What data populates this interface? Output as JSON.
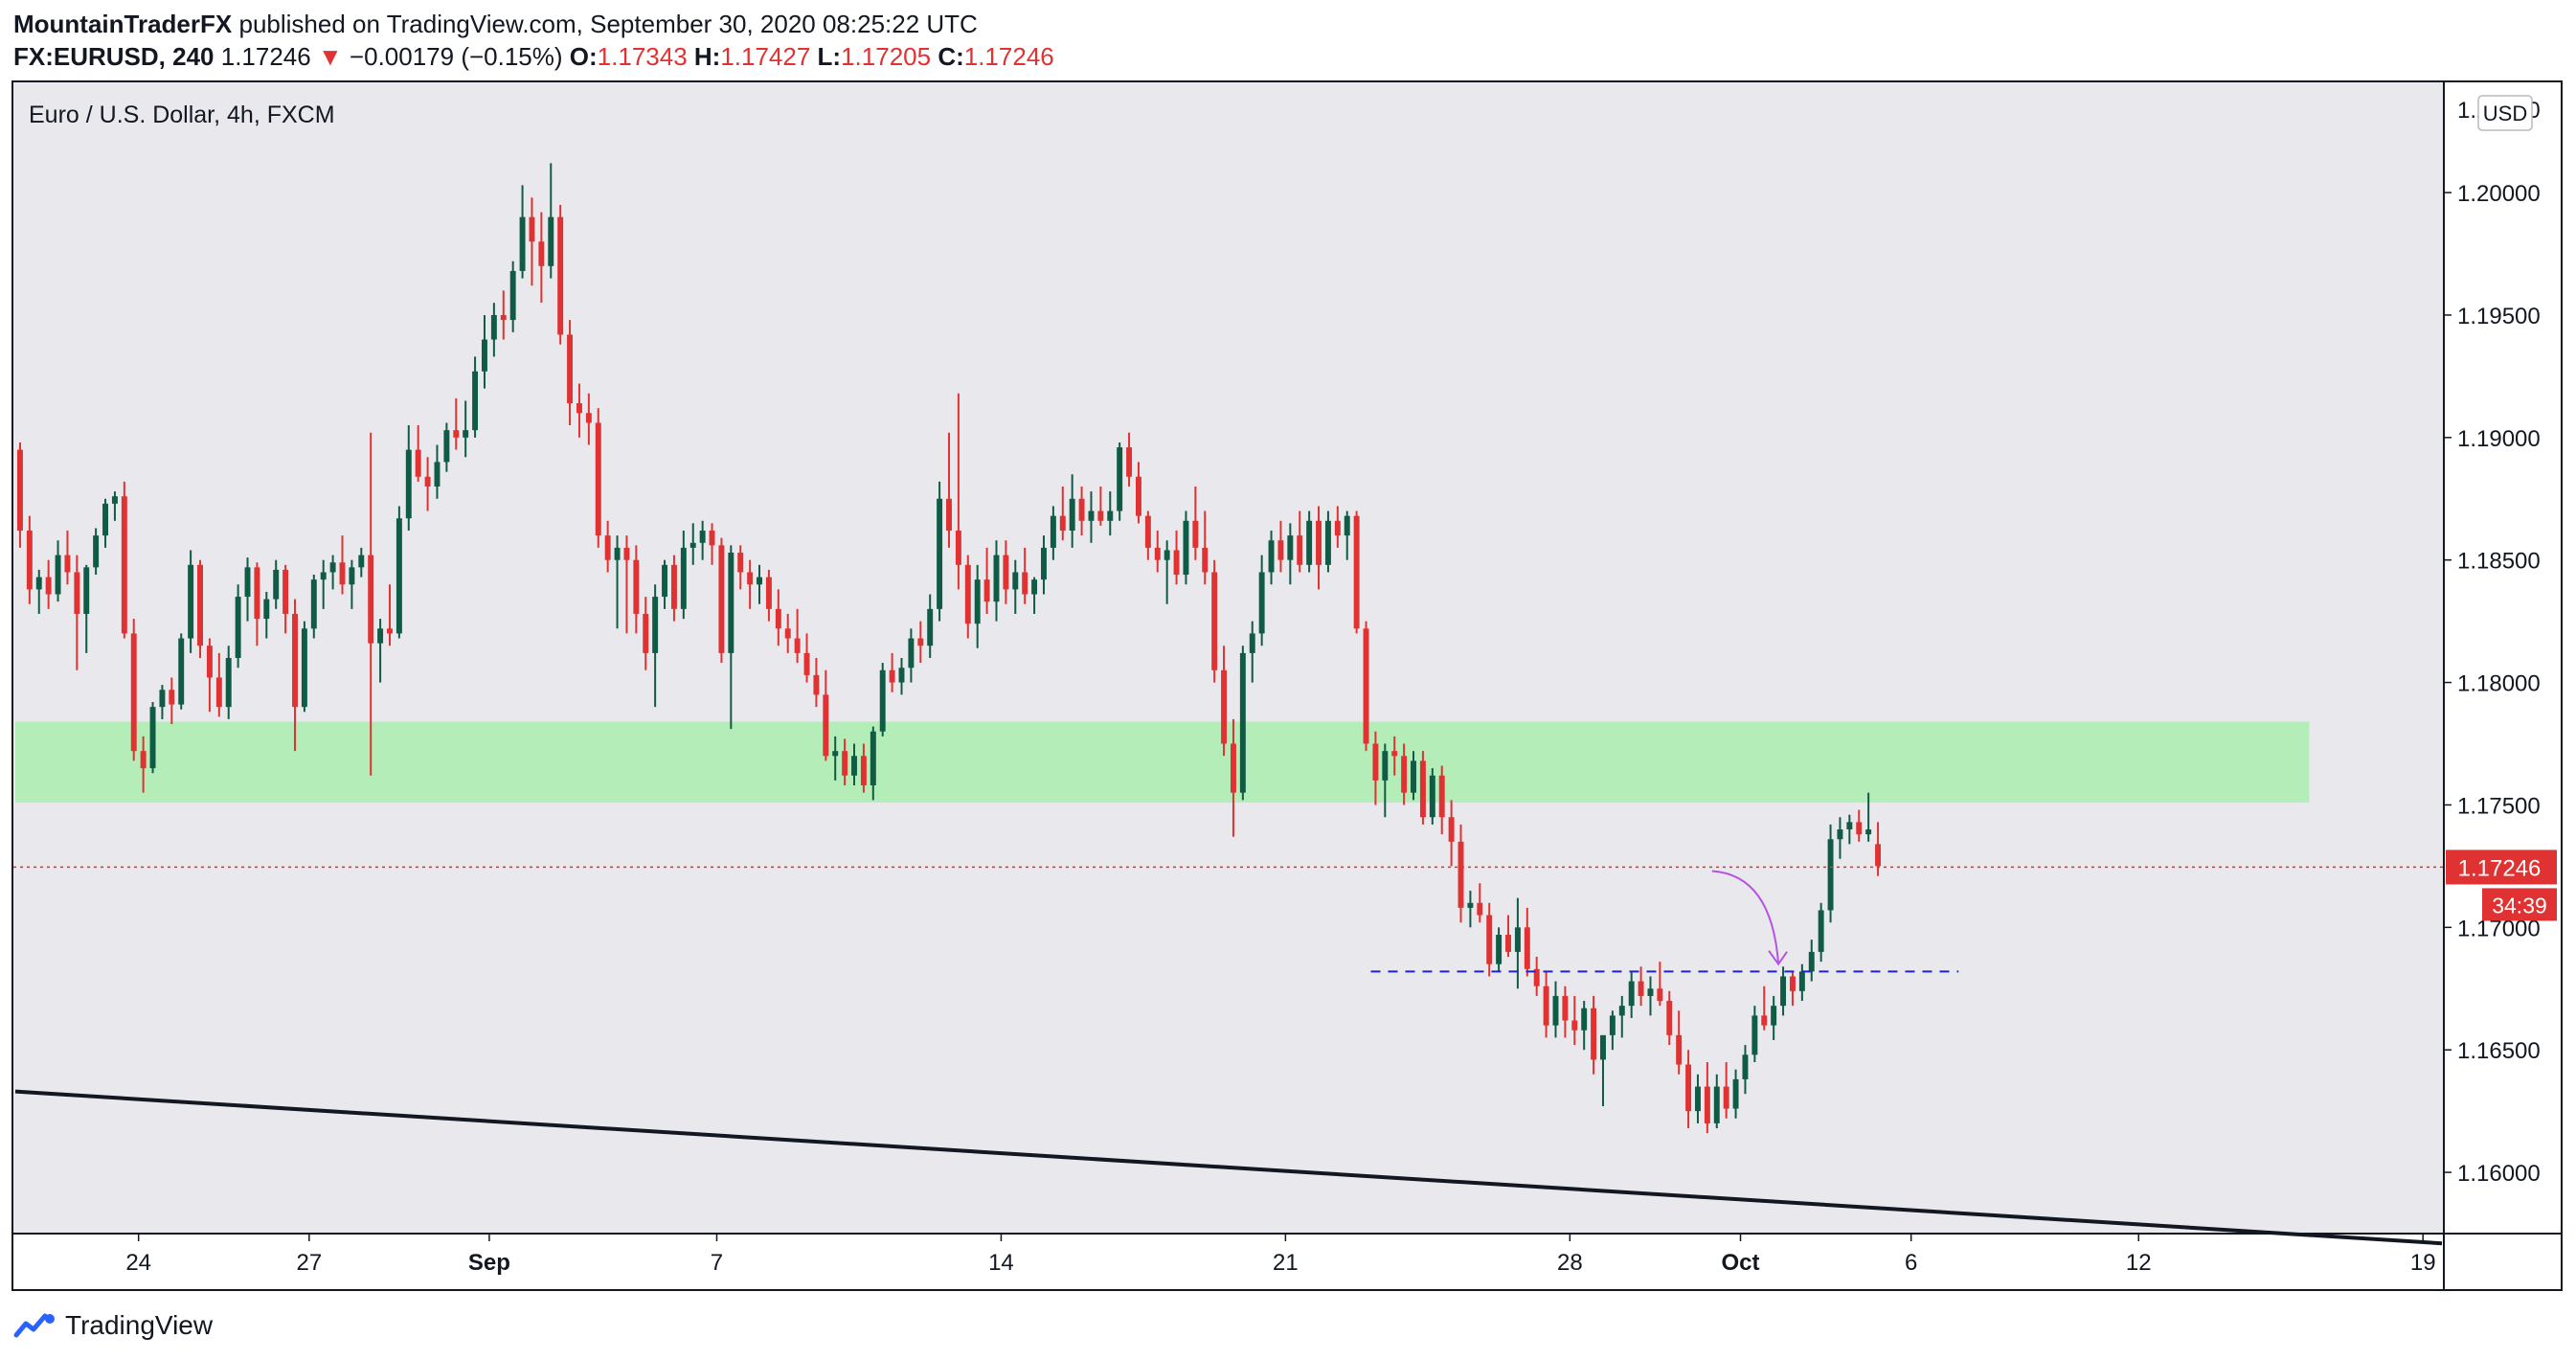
{
  "header": {
    "author": "MountainTraderFX",
    "published_text": "published on TradingView.com, September 30, 2020 08:25:22 UTC",
    "symbol": "FX:EURUSD, 240",
    "price": "1.17246",
    "change_arrow": "▼",
    "change": "−0.00179 (−0.15%)",
    "open_label": "O:",
    "open": "1.17343",
    "high_label": "H:",
    "high": "1.17427",
    "low_label": "L:",
    "low": "1.17205",
    "close_label": "C:",
    "close": "1.17246"
  },
  "footer": {
    "brand": "TradingView"
  },
  "colors": {
    "up": "#26a69a",
    "up_dark": "#0f5b45",
    "down": "#e03232",
    "zone": "#b5edb9",
    "plot_bg": "#e9e9ed",
    "trendline": "#131722",
    "target_line": "#1e22d0",
    "arrow": "#b554e0",
    "price_line": "#e03232"
  },
  "chart_data": {
    "type": "candlestick",
    "title": "Euro / U.S. Dollar, 4h, FXCM",
    "currency_badge": "USD",
    "ylim": [
      1.1575,
      1.2045
    ],
    "y_ticks": [
      {
        "value": 1.16,
        "label": "1.16000"
      },
      {
        "value": 1.165,
        "label": "1.16500"
      },
      {
        "value": 1.17,
        "label": "1.17000"
      },
      {
        "value": 1.175,
        "label": "1.17500"
      },
      {
        "value": 1.18,
        "label": "1.18000"
      },
      {
        "value": 1.185,
        "label": "1.18500"
      },
      {
        "value": 1.19,
        "label": "1.19000"
      },
      {
        "value": 1.195,
        "label": "1.19500"
      },
      {
        "value": 1.2,
        "label": "1.20000"
      }
    ],
    "y_tick_top_partial": "1.20500",
    "x_range": [
      0,
      256
    ],
    "x_ticks": [
      {
        "x": 13,
        "label": "24"
      },
      {
        "x": 31,
        "label": "27"
      },
      {
        "x": 50,
        "label": "Sep"
      },
      {
        "x": 74,
        "label": "7"
      },
      {
        "x": 104,
        "label": "14"
      },
      {
        "x": 134,
        "label": "21"
      },
      {
        "x": 164,
        "label": "28"
      },
      {
        "x": 182,
        "label": "Oct"
      },
      {
        "x": 200,
        "label": "6"
      },
      {
        "x": 224,
        "label": "12"
      },
      {
        "x": 254,
        "label": "19"
      }
    ],
    "last_price": {
      "value": 1.17246,
      "label": "1.17246",
      "countdown": "34:39"
    },
    "zone": {
      "x_start": 0,
      "x_end": 242,
      "low": 1.1751,
      "high": 1.1784
    },
    "trendline": {
      "x1": 0,
      "y1": 1.1633,
      "x2": 256,
      "y2": 1.1571
    },
    "target_line": {
      "x_start": 143,
      "x_end": 205,
      "value": 1.1682
    },
    "projection_arrow": {
      "from_x": 179,
      "from_y": 1.1723,
      "to_x": 186,
      "to_y": 1.1685
    },
    "candles": [
      [
        1.1895,
        1.1898,
        1.1855,
        1.1862
      ],
      [
        1.1862,
        1.1868,
        1.1832,
        1.1838
      ],
      [
        1.1838,
        1.1846,
        1.1828,
        1.1843
      ],
      [
        1.1843,
        1.185,
        1.183,
        1.1836
      ],
      [
        1.1836,
        1.1858,
        1.1833,
        1.1852
      ],
      [
        1.1852,
        1.1862,
        1.184,
        1.1845
      ],
      [
        1.1845,
        1.1852,
        1.1805,
        1.1828
      ],
      [
        1.1828,
        1.1848,
        1.1812,
        1.1847
      ],
      [
        1.1847,
        1.1863,
        1.1844,
        1.186
      ],
      [
        1.186,
        1.1875,
        1.1855,
        1.1873
      ],
      [
        1.1873,
        1.1878,
        1.1866,
        1.1876
      ],
      [
        1.1876,
        1.1882,
        1.1818,
        1.182
      ],
      [
        1.182,
        1.1826,
        1.1768,
        1.1772
      ],
      [
        1.1772,
        1.1778,
        1.1755,
        1.1765
      ],
      [
        1.1765,
        1.1792,
        1.1763,
        1.179
      ],
      [
        1.179,
        1.1799,
        1.1785,
        1.1797
      ],
      [
        1.1797,
        1.1802,
        1.1783,
        1.1791
      ],
      [
        1.1791,
        1.182,
        1.1789,
        1.1818
      ],
      [
        1.1818,
        1.1854,
        1.1812,
        1.1848
      ],
      [
        1.1848,
        1.185,
        1.181,
        1.1815
      ],
      [
        1.1815,
        1.1818,
        1.1788,
        1.1802
      ],
      [
        1.1802,
        1.1812,
        1.1786,
        1.179
      ],
      [
        1.179,
        1.1815,
        1.1785,
        1.181
      ],
      [
        1.181,
        1.184,
        1.1806,
        1.1835
      ],
      [
        1.1835,
        1.1851,
        1.1825,
        1.1847
      ],
      [
        1.1847,
        1.1849,
        1.1815,
        1.1826
      ],
      [
        1.1826,
        1.1837,
        1.1818,
        1.1834
      ],
      [
        1.1834,
        1.185,
        1.183,
        1.1846
      ],
      [
        1.1846,
        1.1848,
        1.182,
        1.1828
      ],
      [
        1.1828,
        1.1834,
        1.1772,
        1.179
      ],
      [
        1.179,
        1.1825,
        1.1788,
        1.1822
      ],
      [
        1.1822,
        1.1844,
        1.1818,
        1.1842
      ],
      [
        1.1842,
        1.185,
        1.183,
        1.1845
      ],
      [
        1.1845,
        1.1852,
        1.1838,
        1.1849
      ],
      [
        1.1849,
        1.186,
        1.1836,
        1.184
      ],
      [
        1.184,
        1.185,
        1.183,
        1.1847
      ],
      [
        1.1847,
        1.1855,
        1.1843,
        1.1852
      ],
      [
        1.1852,
        1.1902,
        1.1762,
        1.1816
      ],
      [
        1.1816,
        1.1826,
        1.18,
        1.1822
      ],
      [
        1.1822,
        1.184,
        1.1815,
        1.182
      ],
      [
        1.182,
        1.1872,
        1.1818,
        1.1867
      ],
      [
        1.1867,
        1.1905,
        1.1862,
        1.1895
      ],
      [
        1.1895,
        1.1905,
        1.1882,
        1.1884
      ],
      [
        1.1884,
        1.1892,
        1.187,
        1.188
      ],
      [
        1.188,
        1.1897,
        1.1875,
        1.189
      ],
      [
        1.189,
        1.1906,
        1.1886,
        1.1903
      ],
      [
        1.1903,
        1.1916,
        1.1895,
        1.19
      ],
      [
        1.19,
        1.1915,
        1.1892,
        1.1903
      ],
      [
        1.1903,
        1.1933,
        1.19,
        1.1927
      ],
      [
        1.1927,
        1.195,
        1.192,
        1.194
      ],
      [
        1.194,
        1.1955,
        1.1933,
        1.195
      ],
      [
        1.195,
        1.196,
        1.194,
        1.1948
      ],
      [
        1.1948,
        1.1972,
        1.1943,
        1.1968
      ],
      [
        1.1968,
        1.2003,
        1.1965,
        1.199
      ],
      [
        1.199,
        1.1998,
        1.1962,
        1.198
      ],
      [
        1.198,
        1.1992,
        1.1955,
        1.197
      ],
      [
        1.197,
        1.2012,
        1.1965,
        1.199
      ],
      [
        1.199,
        1.1995,
        1.1938,
        1.1942
      ],
      [
        1.1942,
        1.1948,
        1.1905,
        1.1914
      ],
      [
        1.1914,
        1.1922,
        1.19,
        1.191
      ],
      [
        1.191,
        1.1918,
        1.1897,
        1.1906
      ],
      [
        1.1906,
        1.1912,
        1.1855,
        1.186
      ],
      [
        1.186,
        1.1866,
        1.1845,
        1.185
      ],
      [
        1.185,
        1.186,
        1.1822,
        1.1855
      ],
      [
        1.1855,
        1.186,
        1.182,
        1.185
      ],
      [
        1.185,
        1.1856,
        1.182,
        1.1828
      ],
      [
        1.1828,
        1.1835,
        1.1805,
        1.1812
      ],
      [
        1.1812,
        1.184,
        1.179,
        1.1835
      ],
      [
        1.1835,
        1.185,
        1.183,
        1.1848
      ],
      [
        1.1848,
        1.1852,
        1.1825,
        1.183
      ],
      [
        1.183,
        1.1862,
        1.1826,
        1.1855
      ],
      [
        1.1855,
        1.1865,
        1.1848,
        1.1857
      ],
      [
        1.1857,
        1.1866,
        1.185,
        1.1862
      ],
      [
        1.1862,
        1.1865,
        1.1848,
        1.1856
      ],
      [
        1.1856,
        1.1859,
        1.1808,
        1.1812
      ],
      [
        1.1812,
        1.1856,
        1.1781,
        1.1853
      ],
      [
        1.1853,
        1.1856,
        1.1838,
        1.1845
      ],
      [
        1.1845,
        1.185,
        1.183,
        1.184
      ],
      [
        1.184,
        1.1848,
        1.1832,
        1.1843
      ],
      [
        1.1843,
        1.1846,
        1.1825,
        1.183
      ],
      [
        1.183,
        1.1838,
        1.1815,
        1.1822
      ],
      [
        1.1822,
        1.1828,
        1.1812,
        1.1818
      ],
      [
        1.1818,
        1.183,
        1.1808,
        1.1812
      ],
      [
        1.1812,
        1.182,
        1.18,
        1.1803
      ],
      [
        1.1803,
        1.181,
        1.179,
        1.1795
      ],
      [
        1.1795,
        1.1805,
        1.1768,
        1.177
      ],
      [
        1.177,
        1.1778,
        1.176,
        1.1772
      ],
      [
        1.1772,
        1.1777,
        1.1758,
        1.1762
      ],
      [
        1.1762,
        1.1775,
        1.1758,
        1.177
      ],
      [
        1.177,
        1.1775,
        1.1755,
        1.1758
      ],
      [
        1.1758,
        1.1782,
        1.1752,
        1.178
      ],
      [
        1.178,
        1.1808,
        1.1778,
        1.1805
      ],
      [
        1.1805,
        1.1812,
        1.1796,
        1.18
      ],
      [
        1.18,
        1.181,
        1.1795,
        1.1806
      ],
      [
        1.1806,
        1.1822,
        1.18,
        1.1818
      ],
      [
        1.1818,
        1.1825,
        1.1808,
        1.1815
      ],
      [
        1.1815,
        1.1836,
        1.181,
        1.183
      ],
      [
        1.183,
        1.1882,
        1.1825,
        1.1875
      ],
      [
        1.1875,
        1.1902,
        1.1855,
        1.1862
      ],
      [
        1.1862,
        1.1918,
        1.1838,
        1.1848
      ],
      [
        1.1848,
        1.1852,
        1.1818,
        1.1824
      ],
      [
        1.1824,
        1.1848,
        1.1814,
        1.1842
      ],
      [
        1.1842,
        1.1855,
        1.1828,
        1.1833
      ],
      [
        1.1833,
        1.1858,
        1.1825,
        1.1852
      ],
      [
        1.1852,
        1.1858,
        1.1832,
        1.1838
      ],
      [
        1.1838,
        1.185,
        1.1828,
        1.1845
      ],
      [
        1.1845,
        1.1855,
        1.1832,
        1.1836
      ],
      [
        1.1836,
        1.1843,
        1.1828,
        1.1842
      ],
      [
        1.1842,
        1.186,
        1.1836,
        1.1855
      ],
      [
        1.1855,
        1.1872,
        1.185,
        1.1868
      ],
      [
        1.1868,
        1.188,
        1.1858,
        1.1862
      ],
      [
        1.1862,
        1.1885,
        1.1855,
        1.1875
      ],
      [
        1.1875,
        1.188,
        1.186,
        1.1866
      ],
      [
        1.1866,
        1.1878,
        1.1857,
        1.187
      ],
      [
        1.187,
        1.188,
        1.1864,
        1.1866
      ],
      [
        1.1866,
        1.1878,
        1.186,
        1.187
      ],
      [
        1.187,
        1.1898,
        1.1866,
        1.1896
      ],
      [
        1.1896,
        1.1902,
        1.188,
        1.1884
      ],
      [
        1.1884,
        1.189,
        1.1865,
        1.1868
      ],
      [
        1.1868,
        1.187,
        1.185,
        1.1855
      ],
      [
        1.1855,
        1.1862,
        1.1845,
        1.185
      ],
      [
        1.185,
        1.1858,
        1.1832,
        1.1854
      ],
      [
        1.1854,
        1.1862,
        1.184,
        1.1844
      ],
      [
        1.1844,
        1.187,
        1.184,
        1.1866
      ],
      [
        1.1866,
        1.188,
        1.185,
        1.1855
      ],
      [
        1.1855,
        1.187,
        1.184,
        1.1845
      ],
      [
        1.1845,
        1.185,
        1.18,
        1.1805
      ],
      [
        1.1805,
        1.1815,
        1.177,
        1.1775
      ],
      [
        1.1775,
        1.1785,
        1.1737,
        1.1755
      ],
      [
        1.1755,
        1.1815,
        1.1752,
        1.1812
      ],
      [
        1.1812,
        1.1825,
        1.18,
        1.182
      ],
      [
        1.182,
        1.1852,
        1.1815,
        1.1845
      ],
      [
        1.1845,
        1.1862,
        1.184,
        1.1858
      ],
      [
        1.1858,
        1.1866,
        1.1845,
        1.185
      ],
      [
        1.185,
        1.1865,
        1.184,
        1.186
      ],
      [
        1.186,
        1.187,
        1.1845,
        1.1848
      ],
      [
        1.1848,
        1.187,
        1.1845,
        1.1866
      ],
      [
        1.1866,
        1.1872,
        1.1838,
        1.1848
      ],
      [
        1.1848,
        1.187,
        1.1845,
        1.1866
      ],
      [
        1.1866,
        1.1872,
        1.1855,
        1.186
      ],
      [
        1.186,
        1.187,
        1.185,
        1.1868
      ],
      [
        1.1868,
        1.187,
        1.182,
        1.1822
      ],
      [
        1.1822,
        1.1825,
        1.1772,
        1.1775
      ],
      [
        1.1775,
        1.178,
        1.175,
        1.176
      ],
      [
        1.176,
        1.1775,
        1.1745,
        1.1772
      ],
      [
        1.1772,
        1.1778,
        1.1762,
        1.177
      ],
      [
        1.177,
        1.1775,
        1.175,
        1.1755
      ],
      [
        1.1755,
        1.1772,
        1.1752,
        1.1768
      ],
      [
        1.1768,
        1.1772,
        1.1742,
        1.1745
      ],
      [
        1.1745,
        1.1765,
        1.1742,
        1.1762
      ],
      [
        1.1762,
        1.1766,
        1.1738,
        1.1745
      ],
      [
        1.1745,
        1.1752,
        1.1725,
        1.1735
      ],
      [
        1.1735,
        1.1742,
        1.1702,
        1.1708
      ],
      [
        1.1708,
        1.1715,
        1.17,
        1.171
      ],
      [
        1.171,
        1.1718,
        1.1702,
        1.1705
      ],
      [
        1.1705,
        1.171,
        1.168,
        1.1685
      ],
      [
        1.1685,
        1.17,
        1.1682,
        1.1697
      ],
      [
        1.1697,
        1.1705,
        1.1688,
        1.169
      ],
      [
        1.169,
        1.1712,
        1.1675,
        1.17
      ],
      [
        1.17,
        1.1708,
        1.168,
        1.1683
      ],
      [
        1.1683,
        1.1688,
        1.1672,
        1.1676
      ],
      [
        1.1676,
        1.1682,
        1.1655,
        1.166
      ],
      [
        1.166,
        1.1678,
        1.1655,
        1.1672
      ],
      [
        1.1672,
        1.1676,
        1.1655,
        1.1662
      ],
      [
        1.1662,
        1.1672,
        1.1652,
        1.1658
      ],
      [
        1.1658,
        1.167,
        1.165,
        1.1667
      ],
      [
        1.1667,
        1.1672,
        1.164,
        1.1646
      ],
      [
        1.1646,
        1.1652,
        1.1627,
        1.1656
      ],
      [
        1.1656,
        1.1666,
        1.165,
        1.1664
      ],
      [
        1.1664,
        1.1672,
        1.1655,
        1.1668
      ],
      [
        1.1668,
        1.1682,
        1.1663,
        1.1678
      ],
      [
        1.1678,
        1.1684,
        1.1668,
        1.1672
      ],
      [
        1.1672,
        1.168,
        1.1664,
        1.1675
      ],
      [
        1.1675,
        1.1686,
        1.1668,
        1.167
      ],
      [
        1.167,
        1.1674,
        1.1652,
        1.1656
      ],
      [
        1.1656,
        1.1666,
        1.164,
        1.1644
      ],
      [
        1.1644,
        1.165,
        1.1618,
        1.1625
      ],
      [
        1.1625,
        1.164,
        1.162,
        1.1635
      ],
      [
        1.1635,
        1.1645,
        1.1616,
        1.162
      ],
      [
        1.162,
        1.164,
        1.1618,
        1.1635
      ],
      [
        1.1635,
        1.1645,
        1.1622,
        1.1626
      ],
      [
        1.1626,
        1.1642,
        1.1622,
        1.1638
      ],
      [
        1.1638,
        1.1652,
        1.1632,
        1.1648
      ],
      [
        1.1648,
        1.1668,
        1.1645,
        1.1664
      ],
      [
        1.1664,
        1.1676,
        1.1658,
        1.166
      ],
      [
        1.166,
        1.1672,
        1.1654,
        1.1668
      ],
      [
        1.1668,
        1.1684,
        1.1664,
        1.168
      ],
      [
        1.168,
        1.1682,
        1.1668,
        1.1674
      ],
      [
        1.1674,
        1.1685,
        1.167,
        1.1682
      ],
      [
        1.1682,
        1.1695,
        1.1678,
        1.169
      ],
      [
        1.169,
        1.171,
        1.1686,
        1.1707
      ],
      [
        1.1707,
        1.1742,
        1.1702,
        1.1736
      ],
      [
        1.1736,
        1.1745,
        1.1728,
        1.174
      ],
      [
        1.174,
        1.1746,
        1.1734,
        1.1743
      ],
      [
        1.1743,
        1.1748,
        1.1735,
        1.1738
      ],
      [
        1.1738,
        1.1755,
        1.1735,
        1.174
      ],
      [
        1.1734,
        1.1743,
        1.1721,
        1.1725
      ]
    ]
  }
}
